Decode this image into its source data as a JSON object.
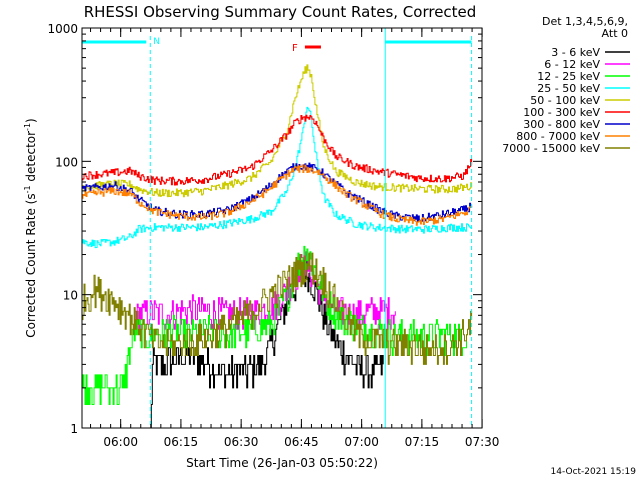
{
  "chart_data": {
    "type": "line",
    "title": "RHESSI Observing Summary Count Rates, Corrected",
    "xlabel": "Start Time (26-Jan-03 05:50:22)",
    "ylabel_main": "Corrected Count Rate (s",
    "ylabel_sup1": "-1",
    "ylabel_mid": " detector",
    "ylabel_sup2": "-1",
    "ylabel_end": ")",
    "yscale": "log",
    "ylim": [
      1,
      1000
    ],
    "xlim_minutes": [
      0,
      99.6
    ],
    "yticks": [
      {
        "value": 1,
        "label": "1"
      },
      {
        "value": 10,
        "label": "10"
      },
      {
        "value": 100,
        "label": "100"
      },
      {
        "value": 1000,
        "label": "1000"
      }
    ],
    "xticks": [
      {
        "minute": 9.63,
        "label": "06:00"
      },
      {
        "minute": 24.63,
        "label": "06:15"
      },
      {
        "minute": 39.63,
        "label": "06:30"
      },
      {
        "minute": 54.63,
        "label": "06:45"
      },
      {
        "minute": 69.63,
        "label": "07:00"
      },
      {
        "minute": 84.63,
        "label": "07:15"
      },
      {
        "minute": 99.63,
        "label": "07:30"
      }
    ],
    "legend_header": [
      "Det 1,3,4,5,6,9,",
      "Att 0"
    ],
    "series": [
      {
        "name": "3 - 6 keV",
        "color": "#000000",
        "points": [
          [
            17,
            1
          ],
          [
            17.5,
            3
          ],
          [
            20,
            3
          ],
          [
            25,
            3.5
          ],
          [
            30,
            3.2
          ],
          [
            35,
            2.6
          ],
          [
            40,
            2.6
          ],
          [
            45,
            3.2
          ],
          [
            48,
            5
          ],
          [
            51,
            9
          ],
          [
            54,
            13
          ],
          [
            56,
            15
          ],
          [
            58,
            11
          ],
          [
            61,
            6
          ],
          [
            64,
            4
          ],
          [
            68,
            3
          ],
          [
            72,
            2.6
          ],
          [
            75,
            3
          ]
        ]
      },
      {
        "name": "6 - 12 keV",
        "color": "#ff00ff",
        "points": [
          [
            13,
            7
          ],
          [
            17,
            7.5
          ],
          [
            22,
            7.2
          ],
          [
            27,
            7.8
          ],
          [
            32,
            7.5
          ],
          [
            37,
            7.2
          ],
          [
            42,
            7.5
          ],
          [
            47,
            8
          ],
          [
            51,
            11
          ],
          [
            54,
            16
          ],
          [
            56,
            17
          ],
          [
            58,
            13
          ],
          [
            61,
            9
          ],
          [
            64,
            7.5
          ],
          [
            68,
            7.2
          ],
          [
            72,
            7.5
          ],
          [
            78,
            7.5
          ]
        ]
      },
      {
        "name": "12 - 25 keV",
        "color": "#00ff00",
        "points": [
          [
            0,
            2
          ],
          [
            5,
            2
          ],
          [
            10,
            2
          ],
          [
            13,
            5.5
          ],
          [
            17,
            5
          ],
          [
            22,
            5.5
          ],
          [
            27,
            5
          ],
          [
            32,
            5.5
          ],
          [
            37,
            5
          ],
          [
            42,
            5.5
          ],
          [
            47,
            6
          ],
          [
            51,
            10
          ],
          [
            54,
            18
          ],
          [
            56,
            22
          ],
          [
            58,
            15
          ],
          [
            61,
            9
          ],
          [
            64,
            7
          ],
          [
            68,
            6
          ],
          [
            72,
            5.5
          ],
          [
            78,
            5
          ],
          [
            84,
            5
          ],
          [
            90,
            5
          ],
          [
            96,
            5
          ]
        ]
      },
      {
        "name": "25 - 50 keV",
        "color": "#00ffff",
        "points": [
          [
            0,
            25
          ],
          [
            4,
            24
          ],
          [
            8,
            25
          ],
          [
            12,
            27
          ],
          [
            14,
            31
          ],
          [
            18,
            32
          ],
          [
            24,
            32
          ],
          [
            30,
            32
          ],
          [
            36,
            34
          ],
          [
            42,
            37
          ],
          [
            47,
            42
          ],
          [
            51,
            60
          ],
          [
            53,
            90
          ],
          [
            55,
            170
          ],
          [
            56,
            265
          ],
          [
            57,
            210
          ],
          [
            58,
            120
          ],
          [
            60,
            55
          ],
          [
            63,
            40
          ],
          [
            68,
            34
          ],
          [
            73,
            32
          ],
          [
            80,
            31
          ],
          [
            86,
            31
          ],
          [
            92,
            32
          ],
          [
            97,
            32
          ]
        ]
      },
      {
        "name": "50 - 100 keV",
        "color": "#cccc00",
        "points": [
          [
            0,
            65
          ],
          [
            4,
            66
          ],
          [
            8,
            68
          ],
          [
            12,
            67
          ],
          [
            14,
            62
          ],
          [
            18,
            58
          ],
          [
            24,
            58
          ],
          [
            30,
            60
          ],
          [
            36,
            66
          ],
          [
            42,
            75
          ],
          [
            47,
            100
          ],
          [
            51,
            170
          ],
          [
            53,
            300
          ],
          [
            55,
            450
          ],
          [
            56,
            510
          ],
          [
            57,
            440
          ],
          [
            58,
            280
          ],
          [
            60,
            130
          ],
          [
            63,
            85
          ],
          [
            68,
            70
          ],
          [
            73,
            65
          ],
          [
            80,
            63
          ],
          [
            86,
            62
          ],
          [
            92,
            62
          ],
          [
            97,
            65
          ]
        ]
      },
      {
        "name": "100 - 300 keV",
        "color": "#ff0000",
        "points": [
          [
            0,
            78
          ],
          [
            4,
            80
          ],
          [
            8,
            82
          ],
          [
            12,
            85
          ],
          [
            14,
            78
          ],
          [
            18,
            72
          ],
          [
            24,
            71
          ],
          [
            30,
            73
          ],
          [
            36,
            80
          ],
          [
            42,
            90
          ],
          [
            47,
            120
          ],
          [
            51,
            160
          ],
          [
            53,
            195
          ],
          [
            55,
            215
          ],
          [
            57,
            215
          ],
          [
            58,
            200
          ],
          [
            60,
            150
          ],
          [
            63,
            110
          ],
          [
            68,
            92
          ],
          [
            73,
            85
          ],
          [
            78,
            80
          ],
          [
            84,
            75
          ],
          [
            90,
            74
          ],
          [
            95,
            78
          ],
          [
            97,
            100
          ]
        ]
      },
      {
        "name": "300 - 800 keV",
        "color": "#0000cc",
        "points": [
          [
            0,
            62
          ],
          [
            4,
            64
          ],
          [
            8,
            66
          ],
          [
            12,
            60
          ],
          [
            14,
            52
          ],
          [
            18,
            43
          ],
          [
            24,
            40
          ],
          [
            30,
            40
          ],
          [
            36,
            43
          ],
          [
            42,
            52
          ],
          [
            46,
            63
          ],
          [
            50,
            80
          ],
          [
            53,
            92
          ],
          [
            56,
            92
          ],
          [
            59,
            86
          ],
          [
            62,
            72
          ],
          [
            66,
            58
          ],
          [
            70,
            50
          ],
          [
            74,
            43
          ],
          [
            78,
            39
          ],
          [
            84,
            37
          ],
          [
            90,
            40
          ],
          [
            96,
            44
          ],
          [
            97,
            48
          ]
        ]
      },
      {
        "name": "800 - 7000 keV",
        "color": "#ff8000",
        "points": [
          [
            0,
            55
          ],
          [
            4,
            58
          ],
          [
            8,
            60
          ],
          [
            12,
            57
          ],
          [
            14,
            50
          ],
          [
            18,
            42
          ],
          [
            24,
            39
          ],
          [
            30,
            38
          ],
          [
            36,
            41
          ],
          [
            42,
            50
          ],
          [
            46,
            60
          ],
          [
            50,
            76
          ],
          [
            53,
            88
          ],
          [
            56,
            88
          ],
          [
            59,
            83
          ],
          [
            62,
            70
          ],
          [
            66,
            56
          ],
          [
            70,
            48
          ],
          [
            74,
            41
          ],
          [
            78,
            37
          ],
          [
            84,
            35
          ],
          [
            90,
            37
          ],
          [
            96,
            42
          ],
          [
            97,
            46
          ]
        ]
      },
      {
        "name": "7000 - 15000 keV",
        "color": "#808000",
        "points": [
          [
            0,
            9
          ],
          [
            3,
            11
          ],
          [
            6,
            10
          ],
          [
            10,
            8
          ],
          [
            14,
            6
          ],
          [
            18,
            4.5
          ],
          [
            22,
            4.2
          ],
          [
            27,
            4.5
          ],
          [
            32,
            5
          ],
          [
            37,
            6
          ],
          [
            42,
            7.5
          ],
          [
            47,
            10
          ],
          [
            51,
            13
          ],
          [
            54,
            16
          ],
          [
            57,
            17
          ],
          [
            60,
            13
          ],
          [
            63,
            9
          ],
          [
            66,
            6.5
          ],
          [
            69,
            5
          ],
          [
            74,
            4.5
          ],
          [
            80,
            4.2
          ],
          [
            86,
            4
          ],
          [
            92,
            4.2
          ],
          [
            96,
            5.5
          ],
          [
            97,
            6
          ]
        ]
      }
    ],
    "annotations": {
      "flare_label": "F",
      "night_label": "N"
    }
  },
  "footer": {
    "timestamp": "14-Oct-2021 15:19"
  }
}
